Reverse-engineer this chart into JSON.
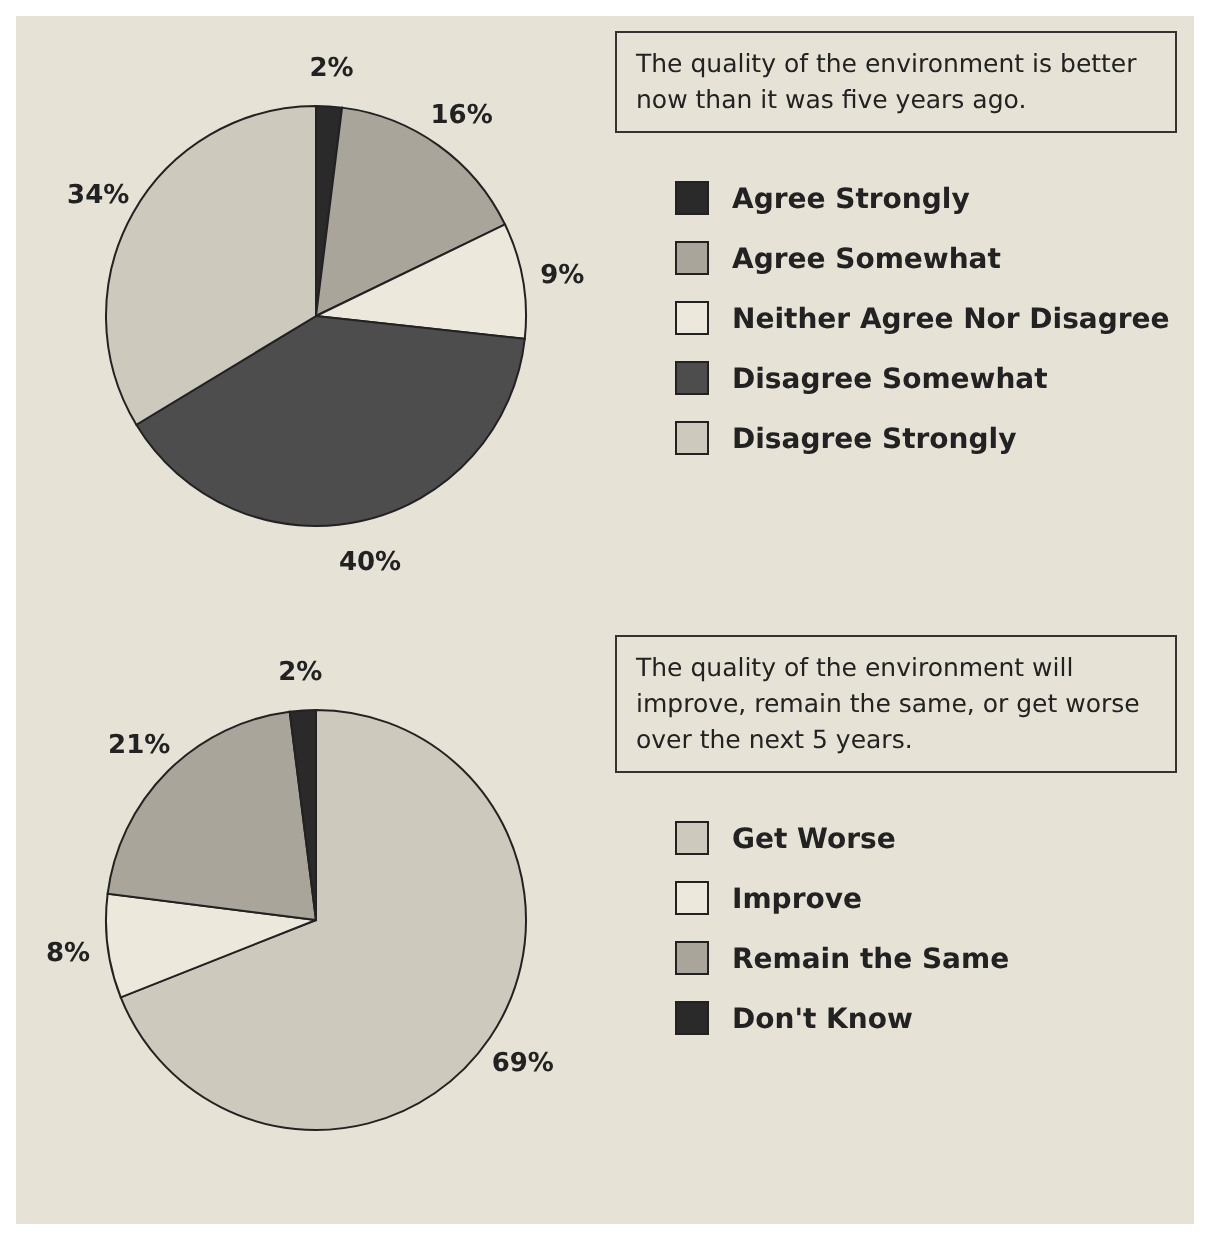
{
  "chart_data": [
    {
      "type": "pie",
      "title": "The quality of the environment is better now than it was five years ago.",
      "categories": [
        "Agree Strongly",
        "Agree Somewhat",
        "Neither Agree Nor Disagree",
        "Disagree Somewhat",
        "Disagree Strongly"
      ],
      "values": [
        2,
        16,
        9,
        40,
        34
      ],
      "value_labels": [
        "2%",
        "16%",
        "9%",
        "40%",
        "34%"
      ],
      "colors": [
        "#2a2a2a",
        "#a9a59b",
        "#ece8dc",
        "#4d4d4d",
        "#cdc9bc"
      ],
      "legend": "right"
    },
    {
      "type": "pie",
      "title": "The quality of the environment will improve, remain the same, or get worse over the next 5 years.",
      "categories": [
        "Get Worse",
        "Improve",
        "Remain the Same",
        "Don't Know"
      ],
      "values": [
        69,
        8,
        21,
        2
      ],
      "value_labels": [
        "69%",
        "8%",
        "21%",
        "2%"
      ],
      "colors": [
        "#cdc9bc",
        "#ece8dc",
        "#a9a59b",
        "#2a2a2a"
      ],
      "legend": "right"
    }
  ]
}
